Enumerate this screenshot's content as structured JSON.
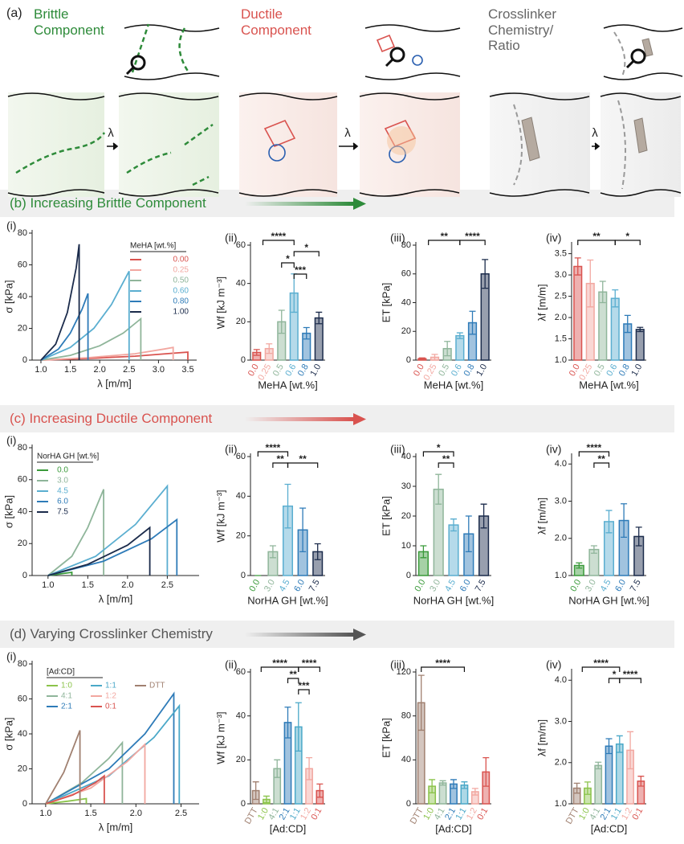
{
  "panel_a": {
    "label": "(a)",
    "brittle": "Brittle Component",
    "ductile": "Ductile Component",
    "crosslinker": "Crosslinker Chemistry/ Ratio",
    "arrow": "λ"
  },
  "sections": [
    "(b) Increasing Brittle Component",
    "(c) Increasing Ductile Component",
    "(d) Varying Crosslinker Chemistry"
  ],
  "chart_data": [
    {
      "type": "line",
      "label": "(i)",
      "ylabel": "σ [kPa]",
      "xlabel": "λ [m/m]",
      "legend_title": "MeHA [wt.%]",
      "xlim": [
        0.85,
        3.65
      ],
      "xticks": [
        {
          "value": 1,
          "label": "1.0"
        },
        {
          "value": 1.5,
          "label": "1.5"
        },
        {
          "value": 2,
          "label": "2.0"
        },
        {
          "value": 2.5,
          "label": "2.5"
        },
        {
          "value": 3,
          "label": "3.0"
        },
        {
          "value": 3.5,
          "label": "3.5"
        }
      ],
      "ylim": [
        0,
        80
      ],
      "yticks": [
        0,
        20,
        40,
        60,
        80
      ],
      "series": [
        {
          "name": "0.00",
          "color": "#d9534f",
          "x": [
            1,
            1.8,
            2.6,
            3.3,
            3.5,
            3.5
          ],
          "values": [
            0,
            1,
            2.5,
            4.5,
            5,
            0
          ]
        },
        {
          "name": "0.25",
          "color": "#f2a7a0",
          "x": [
            1,
            1.8,
            2.6,
            3.1,
            3.25,
            3.25
          ],
          "values": [
            0,
            1.5,
            4,
            7,
            8,
            0
          ]
        },
        {
          "name": "0.50",
          "color": "#8fb59a",
          "x": [
            1,
            1.5,
            2,
            2.4,
            2.7,
            2.7
          ],
          "values": [
            0,
            3,
            9,
            17,
            26,
            0
          ]
        },
        {
          "name": "0.60",
          "color": "#5aaed0",
          "x": [
            1,
            1.5,
            1.9,
            2.2,
            2.5,
            2.5
          ],
          "values": [
            0,
            8,
            20,
            35,
            56,
            0
          ]
        },
        {
          "name": "0.80",
          "color": "#2e7bb8",
          "x": [
            1,
            1.3,
            1.5,
            1.7,
            1.8,
            1.8
          ],
          "values": [
            0,
            7,
            17,
            32,
            42,
            0
          ]
        },
        {
          "name": "1.00",
          "color": "#1b2b4b",
          "x": [
            1,
            1.25,
            1.45,
            1.6,
            1.65,
            1.65
          ],
          "values": [
            0,
            10,
            30,
            58,
            73,
            0
          ]
        }
      ]
    },
    {
      "type": "bar",
      "label": "(ii)",
      "ylabel": "Wf [kJ m⁻³]",
      "xlabel": "MeHA [wt.%]",
      "categories": [
        "0.0",
        "0.25",
        "0.5",
        "0.6",
        "0.8",
        "1.0"
      ],
      "colors": [
        "#d9534f",
        "#f2a7a0",
        "#8fb59a",
        "#5aaed0",
        "#2e7bb8",
        "#1b2b4b"
      ],
      "values": [
        4,
        6,
        20,
        35,
        14,
        22
      ],
      "errors": [
        1.5,
        2.5,
        6,
        10,
        3,
        3
      ],
      "ylim": [
        0,
        60
      ],
      "yticks": [
        0,
        20,
        40,
        60
      ],
      "significance": [
        "****",
        "*",
        "*",
        "***"
      ]
    },
    {
      "type": "bar",
      "label": "(iii)",
      "ylabel": "ET [kPa]",
      "xlabel": "MeHA [wt.%]",
      "categories": [
        "0.0",
        "0.25",
        "0.5",
        "0.6",
        "0.8",
        "1.0"
      ],
      "colors": [
        "#d9534f",
        "#f2a7a0",
        "#8fb59a",
        "#5aaed0",
        "#2e7bb8",
        "#1b2b4b"
      ],
      "values": [
        1,
        2,
        8,
        17,
        26,
        60
      ],
      "errors": [
        0.5,
        2,
        5,
        2,
        8,
        10
      ],
      "ylim": [
        0,
        80
      ],
      "yticks": [
        0,
        20,
        40,
        60,
        80
      ],
      "significance": [
        "**",
        "****"
      ]
    },
    {
      "type": "bar",
      "label": "(iv)",
      "ylabel": "λf [m/m]",
      "xlabel": "MeHA [wt.%]",
      "categories": [
        "0.0",
        "0.25",
        "0.5",
        "0.6",
        "0.8",
        "1.0"
      ],
      "colors": [
        "#d9534f",
        "#f2a7a0",
        "#8fb59a",
        "#5aaed0",
        "#2e7bb8",
        "#1b2b4b"
      ],
      "values": [
        3.2,
        2.8,
        2.6,
        2.45,
        1.85,
        1.72
      ],
      "errors": [
        0.2,
        0.55,
        0.25,
        0.2,
        0.2,
        0.05
      ],
      "ylim": [
        1,
        3.7
      ],
      "yticks": [
        {
          "value": 1,
          "label": "1.0"
        },
        {
          "value": 1.5,
          "label": "1.5"
        },
        {
          "value": 2,
          "label": "2.0"
        },
        {
          "value": 2.5,
          "label": "2.5"
        },
        {
          "value": 3,
          "label": "3.0"
        },
        {
          "value": 3.5,
          "label": "3.5"
        }
      ],
      "significance": [
        "**",
        "*"
      ]
    },
    {
      "type": "line",
      "label": "(i)",
      "ylabel": "σ [kPa]",
      "xlabel": "λ [m/m]",
      "legend_title": "NorHA GH [wt.%]",
      "xlim": [
        0.8,
        2.9
      ],
      "xticks": [
        {
          "value": 1,
          "label": "1.0"
        },
        {
          "value": 1.5,
          "label": "1.5"
        },
        {
          "value": 2,
          "label": "2.0"
        },
        {
          "value": 2.5,
          "label": "2.5"
        }
      ],
      "ylim": [
        0,
        80
      ],
      "yticks": [
        0,
        20,
        40,
        60,
        80
      ],
      "series": [
        {
          "name": "0.0",
          "color": "#3a9a3a",
          "x": [
            1,
            1.15,
            1.3,
            1.3
          ],
          "values": [
            0,
            1,
            2,
            0
          ]
        },
        {
          "name": "3.0",
          "color": "#8fb59a",
          "x": [
            1,
            1.3,
            1.5,
            1.7,
            1.7
          ],
          "values": [
            0,
            12,
            30,
            54,
            0
          ]
        },
        {
          "name": "4.5",
          "color": "#5aaed0",
          "x": [
            1,
            1.6,
            2.1,
            2.5,
            2.5
          ],
          "values": [
            0,
            12,
            32,
            56,
            0
          ]
        },
        {
          "name": "6.0",
          "color": "#2e7bb8",
          "x": [
            1,
            1.7,
            2.3,
            2.62,
            2.62
          ],
          "values": [
            0,
            9,
            23,
            35,
            0
          ]
        },
        {
          "name": "7.5",
          "color": "#1b2b4b",
          "x": [
            1,
            1.5,
            2,
            2.28,
            2.28
          ],
          "values": [
            0,
            7,
            19,
            30,
            0
          ]
        }
      ]
    },
    {
      "type": "bar",
      "label": "(ii)",
      "ylabel": "Wf [kJ m⁻³]",
      "xlabel": "NorHA GH [wt.%]",
      "categories": [
        "0.0",
        "3.0",
        "4.5",
        "6.0",
        "7.5"
      ],
      "colors": [
        "#3a9a3a",
        "#8fb59a",
        "#5aaed0",
        "#2e7bb8",
        "#1b2b4b"
      ],
      "values": [
        0,
        12,
        35,
        23,
        12
      ],
      "errors": [
        0,
        3,
        11,
        11,
        4
      ],
      "ylim": [
        0,
        60
      ],
      "yticks": [
        0,
        20,
        40,
        60
      ],
      "significance": [
        "****",
        "**",
        "**"
      ]
    },
    {
      "type": "bar",
      "label": "(iii)",
      "ylabel": "ET [kPa]",
      "xlabel": "NorHA GH [wt.%]",
      "categories": [
        "0.0",
        "3.0",
        "4.5",
        "6.0",
        "7.5"
      ],
      "colors": [
        "#3a9a3a",
        "#8fb59a",
        "#5aaed0",
        "#2e7bb8",
        "#1b2b4b"
      ],
      "values": [
        8,
        29,
        17,
        14,
        20
      ],
      "errors": [
        2,
        5,
        2,
        6,
        4
      ],
      "ylim": [
        0,
        40
      ],
      "yticks": [
        0,
        10,
        20,
        30,
        40
      ],
      "significance": [
        "*",
        "**"
      ]
    },
    {
      "type": "bar",
      "label": "(iv)",
      "ylabel": "λf [m/m]",
      "xlabel": "NorHA GH [wt.%]",
      "categories": [
        "0.0",
        "3.0",
        "4.5",
        "6.0",
        "7.5"
      ],
      "colors": [
        "#3a9a3a",
        "#8fb59a",
        "#5aaed0",
        "#2e7bb8",
        "#1b2b4b"
      ],
      "values": [
        1.27,
        1.7,
        2.45,
        2.48,
        2.05
      ],
      "errors": [
        0.07,
        0.1,
        0.3,
        0.45,
        0.25
      ],
      "ylim": [
        1,
        4.2
      ],
      "yticks": [
        {
          "value": 1,
          "label": "1.0"
        },
        {
          "value": 2,
          "label": "2.0"
        },
        {
          "value": 3,
          "label": "3.0"
        },
        {
          "value": 4,
          "label": "4.0"
        }
      ],
      "significance": [
        "****",
        "**"
      ]
    },
    {
      "type": "line",
      "label": "(i)",
      "ylabel": "σ [kPa]",
      "xlabel": "λ [m/m]",
      "legend_title": "[Ad:CD]",
      "xlim": [
        0.85,
        2.7
      ],
      "xticks": [
        {
          "value": 1,
          "label": "1.0"
        },
        {
          "value": 1.5,
          "label": "1.5"
        },
        {
          "value": 2,
          "label": "2.0"
        },
        {
          "value": 2.5,
          "label": "2.5"
        }
      ],
      "ylim": [
        0,
        80
      ],
      "yticks": [
        0,
        20,
        40,
        60,
        80
      ],
      "series": [
        {
          "name": "1:0",
          "color": "#8bc34a",
          "x": [
            1,
            1.25,
            1.45,
            1.45
          ],
          "values": [
            0,
            1.5,
            3,
            0
          ]
        },
        {
          "name": "4:1",
          "color": "#8fb59a",
          "x": [
            1,
            1.4,
            1.7,
            1.85,
            1.85
          ],
          "values": [
            0,
            12,
            26,
            35,
            0
          ]
        },
        {
          "name": "2:1",
          "color": "#2e7bb8",
          "x": [
            1,
            1.7,
            2.1,
            2.42,
            2.42
          ],
          "values": [
            0,
            20,
            40,
            63,
            0
          ]
        },
        {
          "name": "1:1",
          "color": "#4aa8c8",
          "x": [
            1,
            1.7,
            2.2,
            2.48,
            2.48
          ],
          "values": [
            0,
            16,
            38,
            56,
            0
          ]
        },
        {
          "name": "1:2",
          "color": "#f2a7a0",
          "x": [
            1,
            1.5,
            1.9,
            2.1,
            2.1
          ],
          "values": [
            0,
            9,
            24,
            34,
            0
          ]
        },
        {
          "name": "0:1",
          "color": "#d9534f",
          "x": [
            1,
            1.3,
            1.55,
            1.65,
            1.65
          ],
          "values": [
            0,
            5,
            12,
            16,
            0
          ]
        },
        {
          "name": "DTT",
          "color": "#a08070",
          "x": [
            1,
            1.2,
            1.38,
            1.38
          ],
          "values": [
            0,
            18,
            42,
            0
          ]
        }
      ]
    },
    {
      "type": "bar",
      "label": "(ii)",
      "ylabel": "Wf [kJ m⁻³]",
      "xlabel": "[Ad:CD]",
      "categories": [
        "DTT",
        "1:0",
        "4:1",
        "2:1",
        "1:1",
        "1:2",
        "0:1"
      ],
      "colors": [
        "#a08070",
        "#8bc34a",
        "#8fb59a",
        "#2e7bb8",
        "#4aa8c8",
        "#f2a7a0",
        "#d9534f"
      ],
      "values": [
        6,
        2,
        16,
        37,
        35,
        16,
        6
      ],
      "errors": [
        4,
        1.5,
        4,
        7,
        11,
        5,
        3
      ],
      "ylim": [
        0,
        60
      ],
      "yticks": [
        0,
        20,
        40,
        60
      ],
      "significance": [
        "****",
        "****",
        "**",
        "***"
      ]
    },
    {
      "type": "bar",
      "label": "(iii)",
      "ylabel": "ET [kPa]",
      "xlabel": "[Ad:CD]",
      "categories": [
        "DTT",
        "1:0",
        "4:1",
        "2:1",
        "1:1",
        "1:2",
        "0:1"
      ],
      "colors": [
        "#a08070",
        "#8bc34a",
        "#8fb59a",
        "#2e7bb8",
        "#4aa8c8",
        "#f2a7a0",
        "#d9534f"
      ],
      "values": [
        92,
        16,
        19,
        18,
        17,
        11,
        29
      ],
      "errors": [
        25,
        6,
        2,
        4,
        3,
        3,
        13
      ],
      "ylim": [
        0,
        120
      ],
      "yticks": [
        0,
        40,
        80,
        120
      ],
      "significance": [
        "****"
      ]
    },
    {
      "type": "bar",
      "label": "(iv)",
      "ylabel": "λf [m/m]",
      "xlabel": "[Ad:CD]",
      "categories": [
        "DTT",
        "1:0",
        "4:1",
        "2:1",
        "1:1",
        "1:2",
        "0:1"
      ],
      "colors": [
        "#a08070",
        "#8bc34a",
        "#8fb59a",
        "#2e7bb8",
        "#4aa8c8",
        "#f2a7a0",
        "#d9534f"
      ],
      "values": [
        1.38,
        1.38,
        1.93,
        2.4,
        2.45,
        2.3,
        1.55
      ],
      "errors": [
        0.12,
        0.15,
        0.08,
        0.18,
        0.2,
        0.45,
        0.12
      ],
      "ylim": [
        1,
        4.2
      ],
      "yticks": [
        {
          "value": 1,
          "label": "1.0"
        },
        {
          "value": 2,
          "label": "2.0"
        },
        {
          "value": 3,
          "label": "3.0"
        },
        {
          "value": 4,
          "label": "4.0"
        }
      ],
      "significance": [
        "****",
        "*",
        "****"
      ]
    }
  ]
}
